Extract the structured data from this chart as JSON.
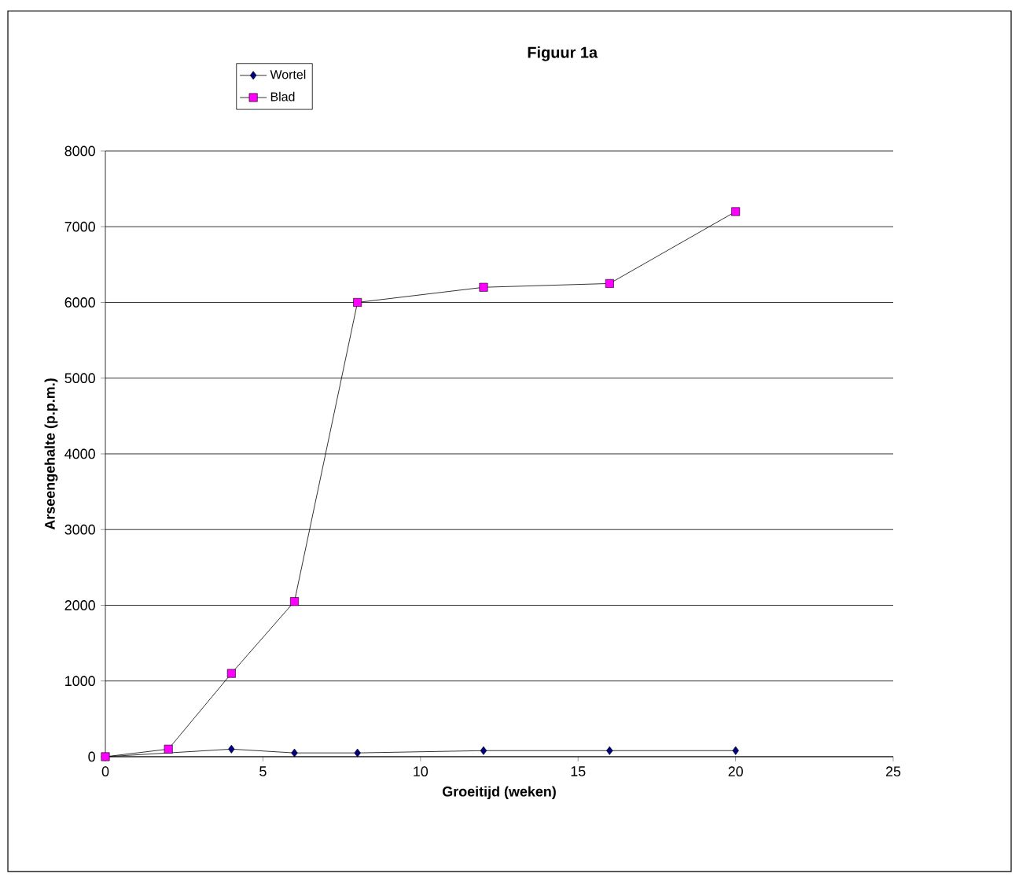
{
  "chart_data": {
    "type": "line",
    "title": "Figuur 1a",
    "xlabel": "Groeitijd (weken)",
    "ylabel": "Arseengehalte (p.p.m.)",
    "xlim": [
      0,
      25
    ],
    "xticks": [
      0,
      5,
      10,
      15,
      20,
      25
    ],
    "ylim": [
      0,
      8000
    ],
    "yticks": [
      0,
      1000,
      2000,
      3000,
      4000,
      5000,
      6000,
      7000,
      8000
    ],
    "grid": "y",
    "legend": "top left",
    "line_style": "solid",
    "series": [
      {
        "name": "Wortel",
        "color": "#000080",
        "marker": "diamond",
        "x": [
          0,
          2,
          4,
          6,
          8,
          12,
          16,
          20
        ],
        "values": [
          0,
          null,
          100,
          50,
          50,
          80,
          80,
          80
        ]
      },
      {
        "name": "Blad",
        "color": "#ff00ff",
        "marker": "square",
        "x": [
          0,
          2,
          4,
          6,
          8,
          12,
          16,
          20
        ],
        "values": [
          0,
          100,
          1100,
          2050,
          6000,
          6200,
          6250,
          7200
        ]
      }
    ]
  }
}
